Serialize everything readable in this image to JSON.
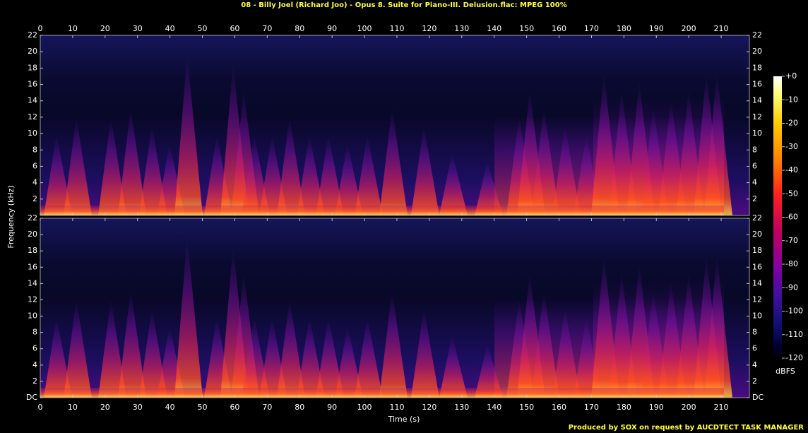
{
  "chart_data": {
    "type": "spectrogram",
    "title": "08 - Billy Joel (Richard Joo) - Opus 8. Suite for Piano-III. Delusion.flac: MPEG 100%",
    "x_label": "Time (s)",
    "y_label": "Frequency (kHz)",
    "xlim": [
      0,
      218.7
    ],
    "xticks": [
      0,
      10,
      20,
      30,
      40,
      50,
      60,
      70,
      80,
      90,
      100,
      110,
      120,
      130,
      140,
      150,
      160,
      170,
      180,
      190,
      200,
      210
    ],
    "channels": [
      {
        "ylim": [
          0,
          22
        ],
        "yticks": [
          2,
          4,
          6,
          8,
          10,
          12,
          14,
          16,
          18,
          20,
          22
        ]
      },
      {
        "ylim": [
          0,
          22
        ],
        "yticks": [
          {
            "value": 0,
            "label": "DC"
          },
          2,
          4,
          6,
          8,
          10,
          12,
          14,
          16,
          18,
          20,
          22
        ]
      }
    ],
    "colorbar": {
      "label": "dBFS",
      "lim": [
        -120,
        0
      ],
      "ticks": [
        {
          "value": 0,
          "label": "+0"
        },
        -10,
        -20,
        -30,
        -40,
        -50,
        -60,
        -70,
        -80,
        -90,
        -100,
        -110,
        -120
      ]
    }
  },
  "footer": "Produced by SOX on request by AUCDTECT TASK MANAGER"
}
